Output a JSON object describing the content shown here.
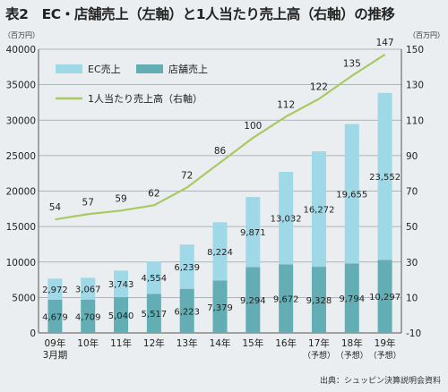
{
  "chart_data": {
    "type": "bar",
    "title": "表2　EC・店舗売上（左軸）と1人当たり売上高（右軸）の推移",
    "left_unit": "（百万円）",
    "right_unit": "（百万円）",
    "categories": [
      [
        "09年",
        "3月期"
      ],
      [
        "10年"
      ],
      [
        "11年"
      ],
      [
        "12年"
      ],
      [
        "13年"
      ],
      [
        "14年"
      ],
      [
        "15年"
      ],
      [
        "16年"
      ],
      [
        "17年",
        "（予想）"
      ],
      [
        "18年",
        "（予想）"
      ],
      [
        "19年",
        "（予想）"
      ]
    ],
    "series": [
      {
        "name": "店舗売上",
        "type": "bar",
        "axis": "left",
        "color": "#62aeb4",
        "values": [
          4679,
          4709,
          5040,
          5517,
          6223,
          7379,
          9294,
          9672,
          9328,
          9794,
          10297
        ],
        "labels": [
          "4,679",
          "4,709",
          "5,040",
          "5,517",
          "6,223",
          "7,379",
          "9,294",
          "9,672",
          "9,328",
          "9,794",
          "10,297"
        ]
      },
      {
        "name": "EC売上",
        "type": "bar",
        "axis": "left",
        "color": "#9fd8e6",
        "values": [
          2972,
          3067,
          3743,
          4554,
          6239,
          8224,
          9871,
          13032,
          16272,
          19655,
          23552
        ],
        "labels": [
          "2,972",
          "3,067",
          "3,743",
          "4,554",
          "6,239",
          "8,224",
          "9,871",
          "13,032",
          "16,272",
          "19,655",
          "23,552"
        ]
      },
      {
        "name": "1人当たり売上高（右軸）",
        "type": "line",
        "axis": "right",
        "color": "#a9c963",
        "values": [
          54,
          57,
          59,
          62,
          72,
          86,
          100,
          112,
          122,
          135,
          147
        ],
        "labels": [
          "54",
          "57",
          "59",
          "62",
          "72",
          "86",
          "100",
          "112",
          "122",
          "135",
          "147"
        ]
      }
    ],
    "left_axis": {
      "min": 0,
      "max": 40000,
      "ticks": [
        "0",
        "5000",
        "10000",
        "15000",
        "20000",
        "25000",
        "30000",
        "35000",
        "40000"
      ]
    },
    "right_axis": {
      "min": -10,
      "max": 150,
      "ticks": [
        "-10",
        "10",
        "30",
        "50",
        "70",
        "90",
        "110",
        "130",
        "150"
      ]
    },
    "legend": {
      "placement": "top-left"
    },
    "grid": true
  },
  "source": "出典：シュッピン決算説明会資料"
}
